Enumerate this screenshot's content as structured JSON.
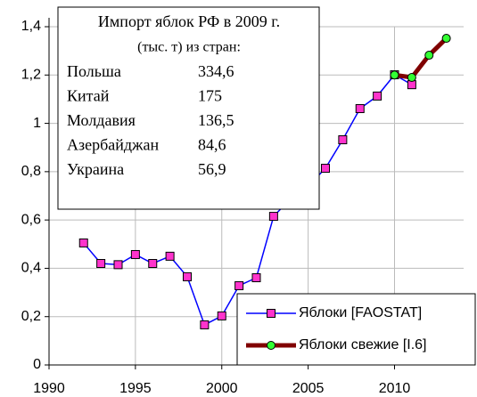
{
  "chart_data": {
    "type": "line",
    "x": [
      1992,
      1993,
      1994,
      1995,
      1996,
      1997,
      1998,
      1999,
      2000,
      2001,
      2002,
      2003,
      2004,
      2005,
      2006,
      2007,
      2008,
      2009,
      2010,
      2011,
      2012,
      2013
    ],
    "series": [
      {
        "name": "Яблоки [FAOSTAT]",
        "color": "#0000ff",
        "marker_color": "#ff33cc",
        "values": [
          0.505,
          0.42,
          0.415,
          0.457,
          0.42,
          0.45,
          0.365,
          0.166,
          0.203,
          0.328,
          0.361,
          0.615,
          0.69,
          0.74,
          0.814,
          0.932,
          1.061,
          1.113,
          1.201,
          1.16,
          null,
          null
        ]
      },
      {
        "name": "Яблоки свежие [I.6]",
        "color": "#800000",
        "marker_color": "#33ff33",
        "values": [
          null,
          null,
          null,
          null,
          null,
          null,
          null,
          null,
          null,
          null,
          null,
          null,
          null,
          null,
          null,
          null,
          null,
          null,
          1.2,
          1.19,
          1.282,
          1.352
        ]
      }
    ],
    "xlim": [
      1990,
      2014
    ],
    "xticks": [
      1990,
      1995,
      2000,
      2005,
      2010
    ],
    "ylim": [
      0,
      1.4
    ],
    "yticks": [
      0,
      {
        "value": 0.2,
        "label": "0,2"
      },
      {
        "value": 0.4,
        "label": "0,4"
      },
      {
        "value": 0.6,
        "label": "0,6"
      },
      {
        "value": 0.8,
        "label": "0,8"
      },
      1,
      {
        "value": 1.2,
        "label": "1,2"
      },
      {
        "value": 1.4,
        "label": "1,4"
      }
    ],
    "grid": true,
    "inset": {
      "title": "Импорт яблок РФ в 2009 г.",
      "subtitle": "(тыс. т) из стран:",
      "rows": [
        {
          "country": "Польша",
          "value": "334,6"
        },
        {
          "country": "Китай",
          "value": "175"
        },
        {
          "country": "Молдавия",
          "value": "136,5"
        },
        {
          "country": "Азербайджан",
          "value": "84,6"
        },
        {
          "country": "Украина",
          "value": "56,9"
        }
      ]
    }
  }
}
